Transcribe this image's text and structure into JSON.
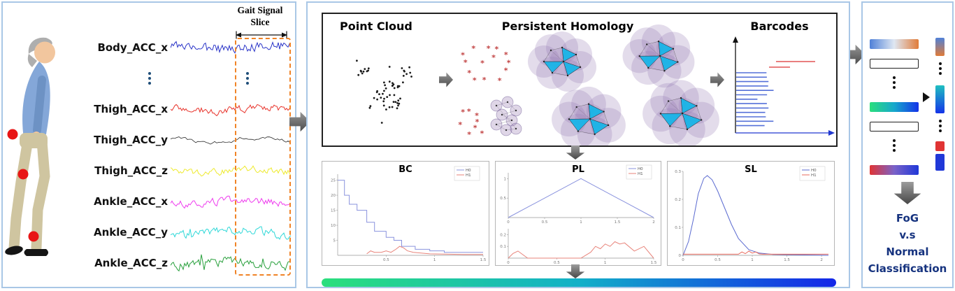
{
  "left_panel": {
    "slice_label_line1": "Gait Signal",
    "slice_label_line2": "Slice",
    "signals": [
      {
        "label": "Body_ACC_x",
        "color": "#2b35c8"
      },
      {
        "label": "Thigh_ACC_x",
        "color": "#e8342c"
      },
      {
        "label": "Thigh_ACC_y",
        "color": "#2a2a2a"
      },
      {
        "label": "Thigh_ACC_z",
        "color": "#eeea2e"
      },
      {
        "label": "Ankle_ACC_x",
        "color": "#ee3cee"
      },
      {
        "label": "Ankle_ACC_y",
        "color": "#2fd8d8"
      },
      {
        "label": "Ankle_ACC_z",
        "color": "#28a03c"
      }
    ]
  },
  "middle_panel": {
    "point_cloud_title": "Point Cloud",
    "homology_title": "Persistent Homology",
    "barcodes_title": "Barcodes",
    "gradient_bar_colors": [
      "#2bdf7c",
      "#12b0c8",
      "#1326e8"
    ]
  },
  "chart_data": [
    {
      "type": "line",
      "title": "BC",
      "xlim": [
        0,
        1.5
      ],
      "ylim": [
        0,
        27
      ],
      "xticks": [
        0.5,
        1,
        1.5
      ],
      "yticks": [
        5,
        10,
        15,
        20,
        25
      ],
      "legend": [
        {
          "name": "H0",
          "color": "#8a93de"
        },
        {
          "name": "H1",
          "color": "#e8837a"
        }
      ],
      "series": [
        {
          "name": "H0",
          "color": "#8a93de",
          "x": [
            0,
            0.07,
            0.07,
            0.12,
            0.12,
            0.2,
            0.2,
            0.3,
            0.3,
            0.38,
            0.38,
            0.5,
            0.5,
            0.58,
            0.58,
            0.66,
            0.66,
            0.8,
            0.8,
            0.95,
            0.95,
            1.1,
            1.1,
            1.5
          ],
          "y": [
            25,
            25,
            20,
            20,
            17,
            17,
            15,
            15,
            11,
            11,
            8,
            8,
            6,
            6,
            5,
            5,
            3,
            3,
            2,
            2,
            1.5,
            1.5,
            1,
            1
          ]
        },
        {
          "name": "H1",
          "color": "#e8837a",
          "x": [
            0.3,
            0.34,
            0.38,
            0.45,
            0.5,
            0.55,
            0.6,
            0.64,
            0.68,
            0.72,
            0.78,
            0.85,
            0.95,
            1.1,
            1.3,
            1.5
          ],
          "y": [
            0.5,
            1.5,
            1,
            1,
            1.5,
            1,
            2,
            3,
            2.5,
            1.5,
            1,
            0.8,
            0.5,
            0.4,
            0.3,
            0.3
          ]
        }
      ]
    },
    {
      "type": "line",
      "title": "PL",
      "legend": [
        {
          "name": "H0",
          "color": "#8a93de"
        },
        {
          "name": "H1",
          "color": "#e8837a"
        }
      ],
      "subplots": [
        {
          "xlim": [
            0,
            2
          ],
          "ylim": [
            0,
            1.15
          ],
          "xticks": [
            0,
            0.5,
            1,
            1.5,
            2
          ],
          "yticks": [
            0.5,
            1
          ],
          "series": [
            {
              "name": "H0",
              "color": "#8a93de",
              "x": [
                0,
                1,
                2
              ],
              "y": [
                0,
                1,
                0
              ]
            }
          ]
        },
        {
          "xlim": [
            0,
            1.5
          ],
          "ylim": [
            0,
            0.25
          ],
          "xticks": [
            0,
            0.5,
            1,
            1.5
          ],
          "yticks": [
            0.1,
            0.2
          ],
          "series": [
            {
              "name": "H1",
              "color": "#e8837a",
              "x": [
                0,
                0.05,
                0.1,
                0.15,
                0.2,
                0.3,
                0.75,
                0.85,
                0.9,
                0.95,
                1.0,
                1.05,
                1.1,
                1.15,
                1.2,
                1.3,
                1.4,
                1.5
              ],
              "y": [
                0,
                0.04,
                0.06,
                0.03,
                0,
                0,
                0,
                0.05,
                0.1,
                0.08,
                0.12,
                0.1,
                0.14,
                0.12,
                0.13,
                0.06,
                0.1,
                0
              ]
            }
          ]
        }
      ]
    },
    {
      "type": "line",
      "title": "SL",
      "xlim": [
        0,
        2.1
      ],
      "ylim": [
        0,
        0.3
      ],
      "xticks": [
        0,
        0.5,
        1,
        1.5,
        2
      ],
      "yticks": [
        0,
        0.1,
        0.2,
        0.3
      ],
      "legend": [
        {
          "name": "H0",
          "color": "#5a6ad0"
        },
        {
          "name": "H1",
          "color": "#e86a5e"
        }
      ],
      "series": [
        {
          "name": "H0",
          "color": "#5a6ad0",
          "x": [
            0,
            0.08,
            0.15,
            0.22,
            0.3,
            0.35,
            0.42,
            0.5,
            0.6,
            0.7,
            0.8,
            0.95,
            1.1,
            1.3,
            2.1
          ],
          "y": [
            0,
            0.05,
            0.13,
            0.22,
            0.275,
            0.285,
            0.27,
            0.23,
            0.17,
            0.11,
            0.06,
            0.02,
            0.008,
            0.003,
            0
          ]
        },
        {
          "name": "H1",
          "color": "#e86a5e",
          "x": [
            0,
            0.8,
            0.85,
            0.9,
            0.95,
            1.0,
            1.05,
            1.1,
            1.15,
            2.1
          ],
          "y": [
            0.004,
            0.004,
            0.012,
            0.006,
            0.015,
            0.008,
            0.012,
            0.005,
            0.004,
            0.004
          ]
        }
      ]
    }
  ],
  "right_panel": {
    "bars": [
      {
        "kind": "gradient",
        "colors": [
          "#4f81d8",
          "#dfe7f2",
          "#e07b39"
        ]
      },
      {
        "kind": "empty"
      },
      {
        "kind": "dots"
      },
      {
        "kind": "gradient",
        "colors": [
          "#2bdf7c",
          "#17a8cc",
          "#1433e8"
        ]
      },
      {
        "kind": "empty"
      },
      {
        "kind": "dots"
      },
      {
        "kind": "gradient",
        "colors": [
          "#e03434",
          "#7a62c8",
          "#2038d8"
        ]
      }
    ],
    "side_bars": [
      {
        "kind": "gradient",
        "colors": [
          "#4f81d8",
          "#e07b39"
        ]
      },
      {
        "kind": "dots"
      },
      {
        "kind": "gradient",
        "colors": [
          "#20c0c0",
          "#1433e8"
        ]
      },
      {
        "kind": "dots"
      },
      {
        "kind": "solid",
        "color": "#e03434"
      },
      {
        "kind": "solid",
        "color": "#2038d8"
      }
    ],
    "classification": [
      "FoG",
      "v.s",
      "Normal",
      "Classification"
    ],
    "text_color": "#16337f"
  }
}
